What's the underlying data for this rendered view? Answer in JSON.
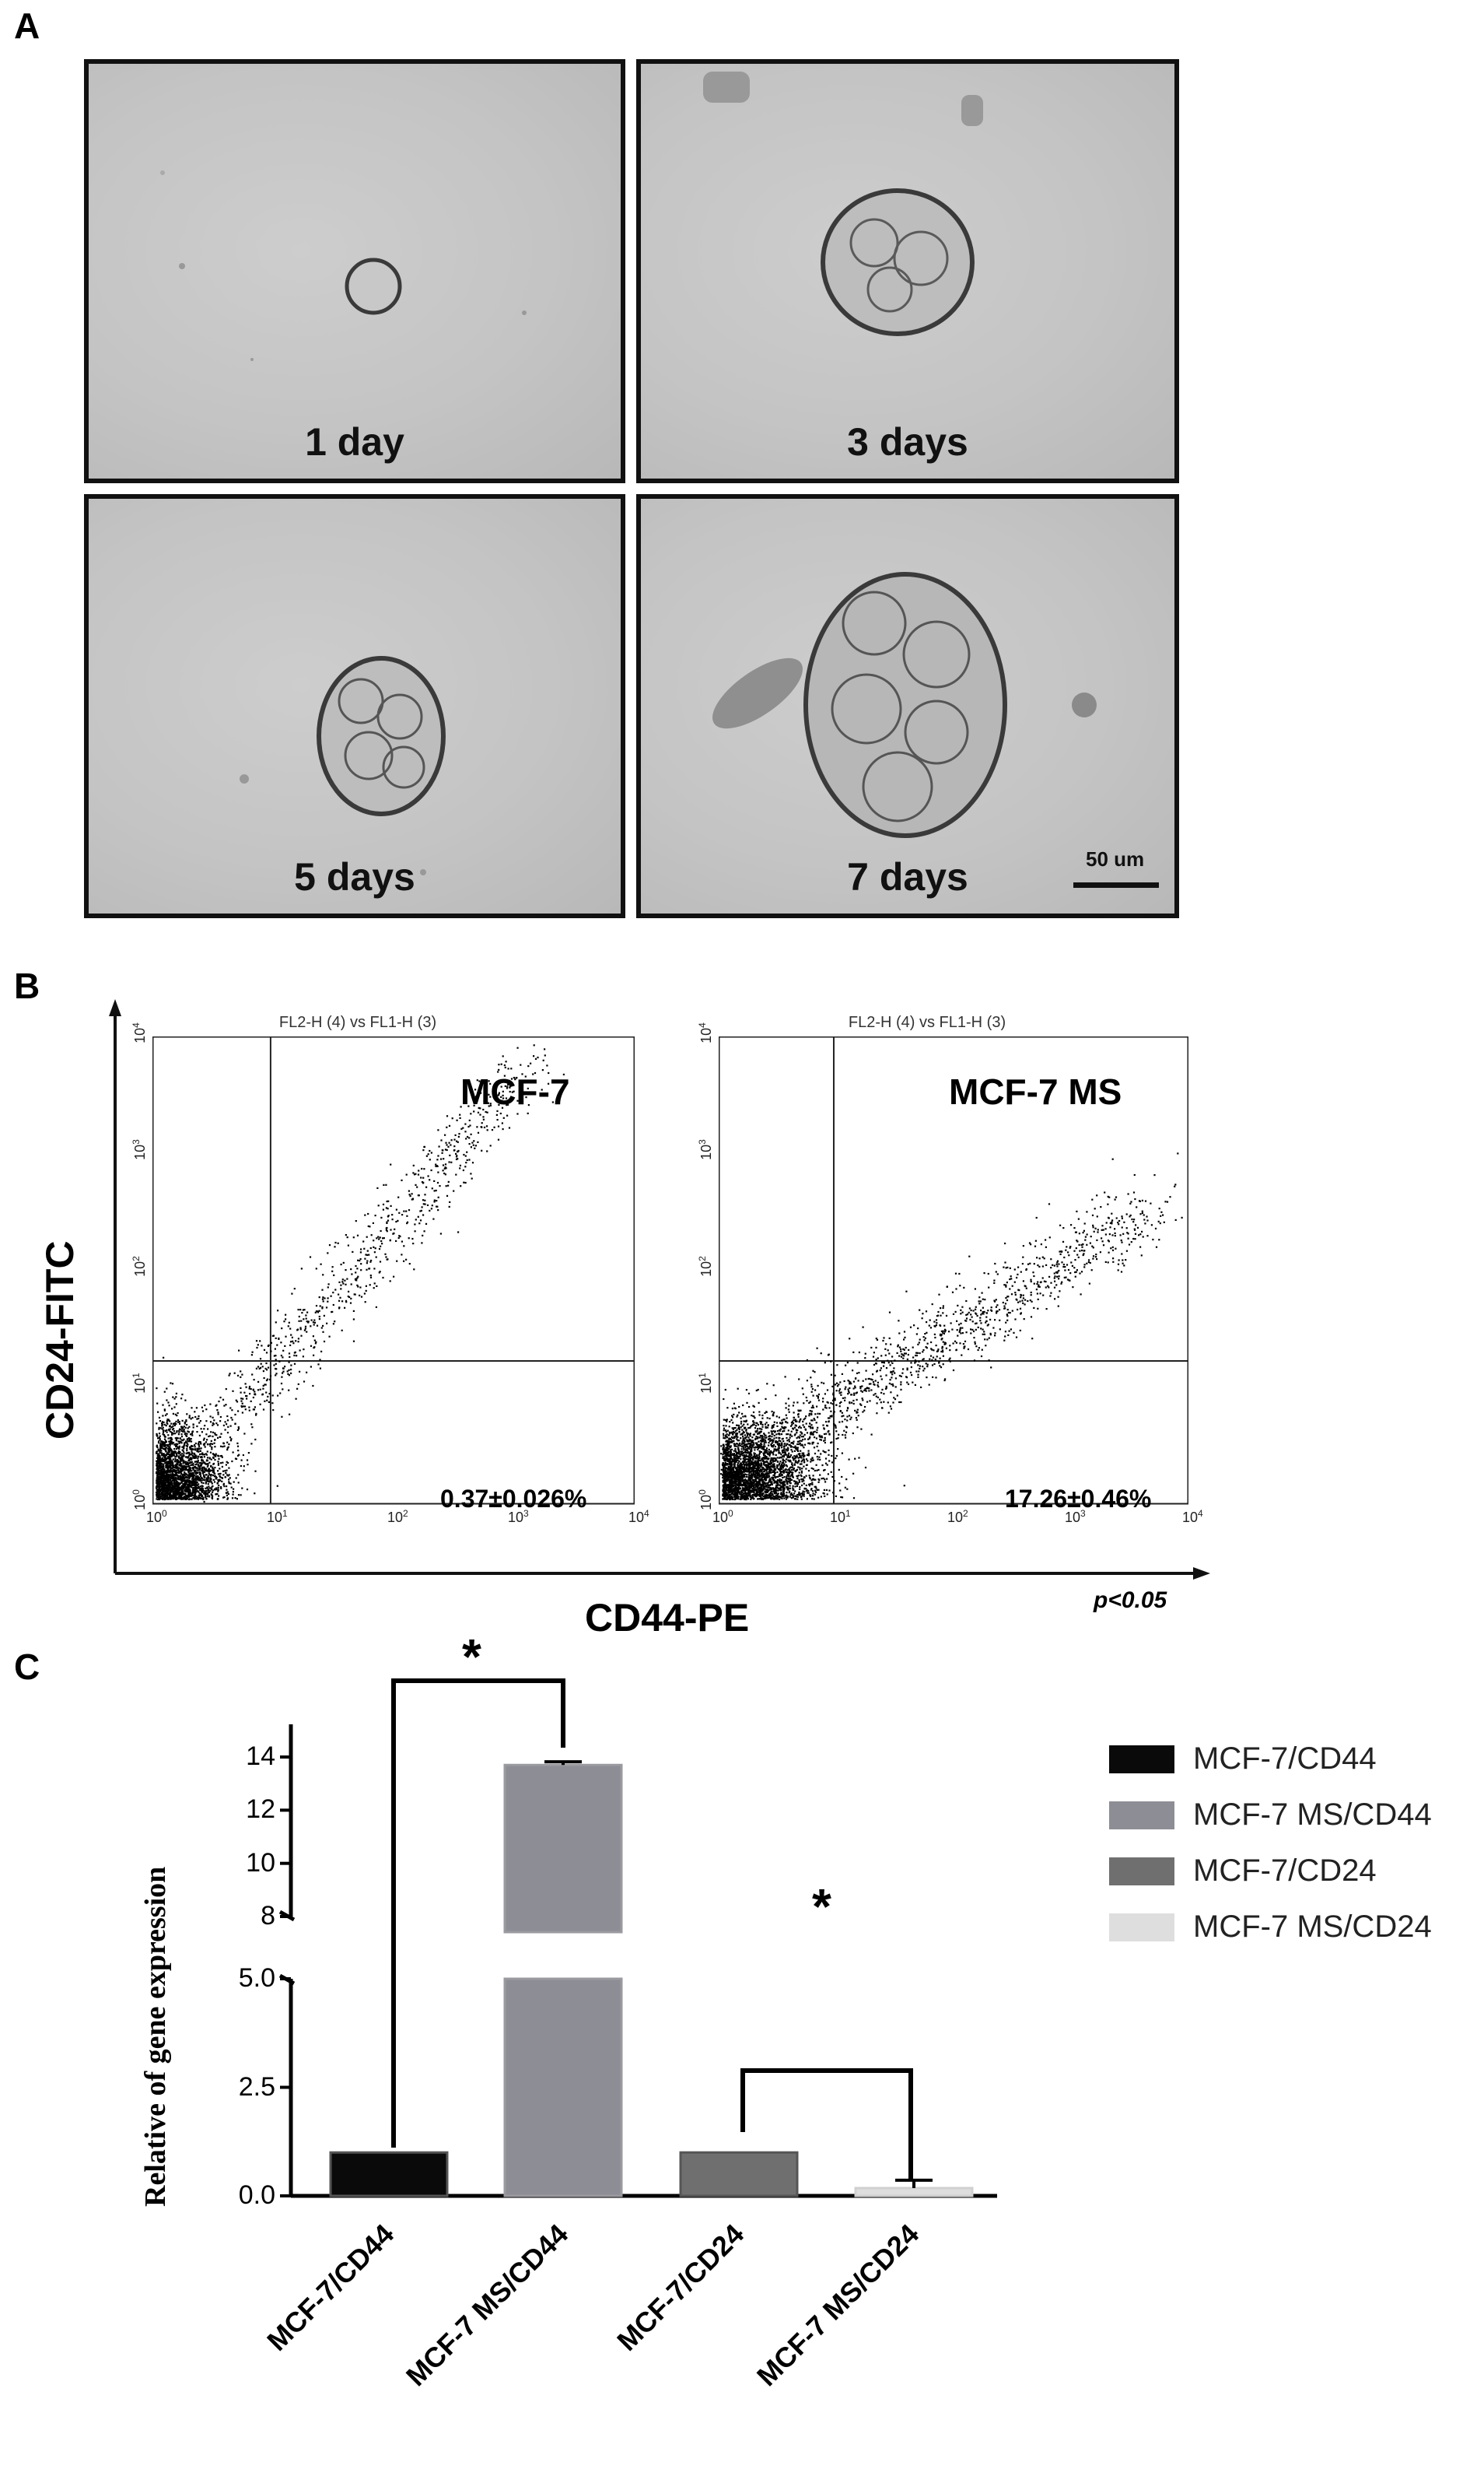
{
  "panel_a": {
    "letter": "A",
    "images": [
      {
        "label": "1 day"
      },
      {
        "label": "3 days"
      },
      {
        "label": "5 days"
      },
      {
        "label": "7 days"
      }
    ],
    "scale_bar_label": "50 um"
  },
  "panel_b": {
    "letter": "B",
    "y_axis_title": "CD24-FITC",
    "x_axis_title": "CD44-PE",
    "p_value": "p<0.05",
    "plots": [
      {
        "title": "FL2-H (4) vs FL1-H (3)",
        "name": "MCF-7",
        "percent": "0.37±0.026%"
      },
      {
        "title": "FL2-H (4) vs FL1-H (3)",
        "name": "MCF-7 MS",
        "percent": "17.26±0.46%"
      }
    ],
    "ticks": [
      "10",
      "10",
      "10",
      "10",
      "10"
    ],
    "tick_exponents": [
      "0",
      "1",
      "2",
      "3",
      "4"
    ]
  },
  "panel_c": {
    "letter": "C",
    "significance_mark": "*",
    "chart_data": {
      "type": "bar",
      "title": "",
      "ylabel": "Relative of gene expression",
      "xlabel": "",
      "categories": [
        "MCF-7/CD44",
        "MCF-7 MS/CD44",
        "MCF-7/CD24",
        "MCF-7 MS/CD24"
      ],
      "values": [
        1.0,
        13.7,
        1.0,
        0.18
      ],
      "errors": [
        0,
        0.12,
        0,
        0.18
      ],
      "colors": [
        "#0a0a0a",
        "#8d8d95",
        "#6f6f6f",
        "#dedede"
      ],
      "yticks_lower": [
        "0.0",
        "2.5",
        "5.0"
      ],
      "yticks_upper": [
        "8",
        "10",
        "12",
        "14"
      ],
      "ylim_lower": [
        0,
        5.0
      ],
      "ylim_upper": [
        8,
        14.5
      ],
      "legend": [
        "MCF-7/CD44",
        "MCF-7 MS/CD44",
        "MCF-7/CD24",
        "MCF-7 MS/CD24"
      ],
      "legend_position": "top-right"
    }
  }
}
